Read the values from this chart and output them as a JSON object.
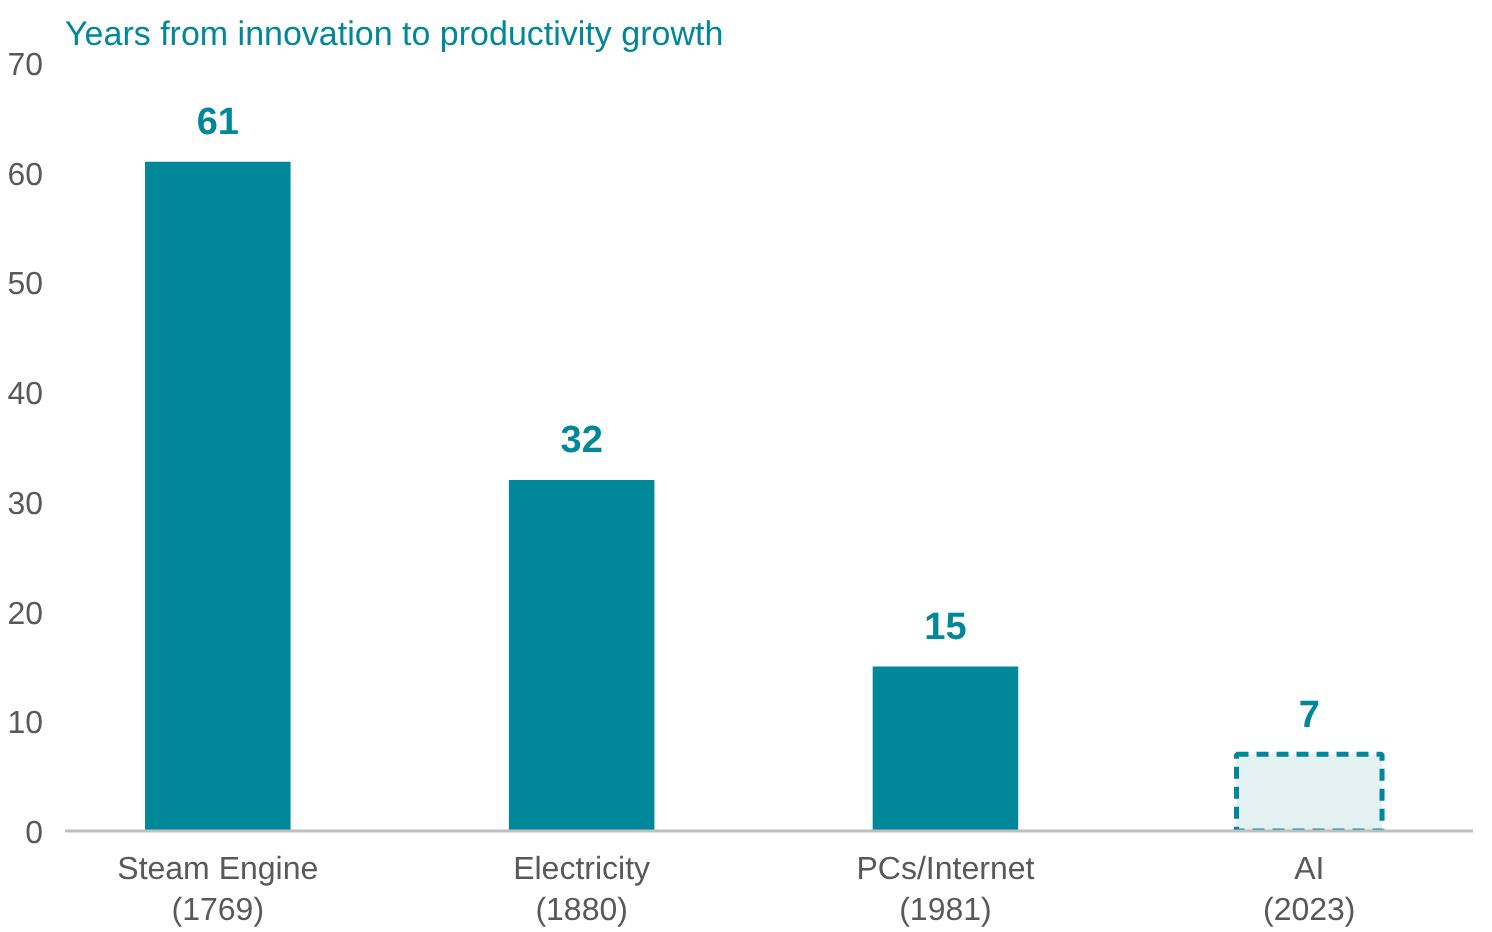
{
  "chart_data": {
    "type": "bar",
    "title": "Years from innovation to productivity growth",
    "categories": [
      "Steam Engine\n(1769)",
      "Electricity\n(1880)",
      "PCs/Internet\n(1981)",
      "AI\n(2023)"
    ],
    "series": [
      {
        "color": "#00879a",
        "values": [
          61,
          32,
          15,
          null
        ]
      },
      {
        "color": "#e3f1f2",
        "line_style": "dashed",
        "values": [
          null,
          null,
          null,
          7
        ]
      }
    ],
    "ylim": [
      0,
      70
    ],
    "yticks": [
      0,
      10,
      20,
      30,
      40,
      50,
      60,
      70
    ],
    "data_labels": true,
    "grid": false
  }
}
